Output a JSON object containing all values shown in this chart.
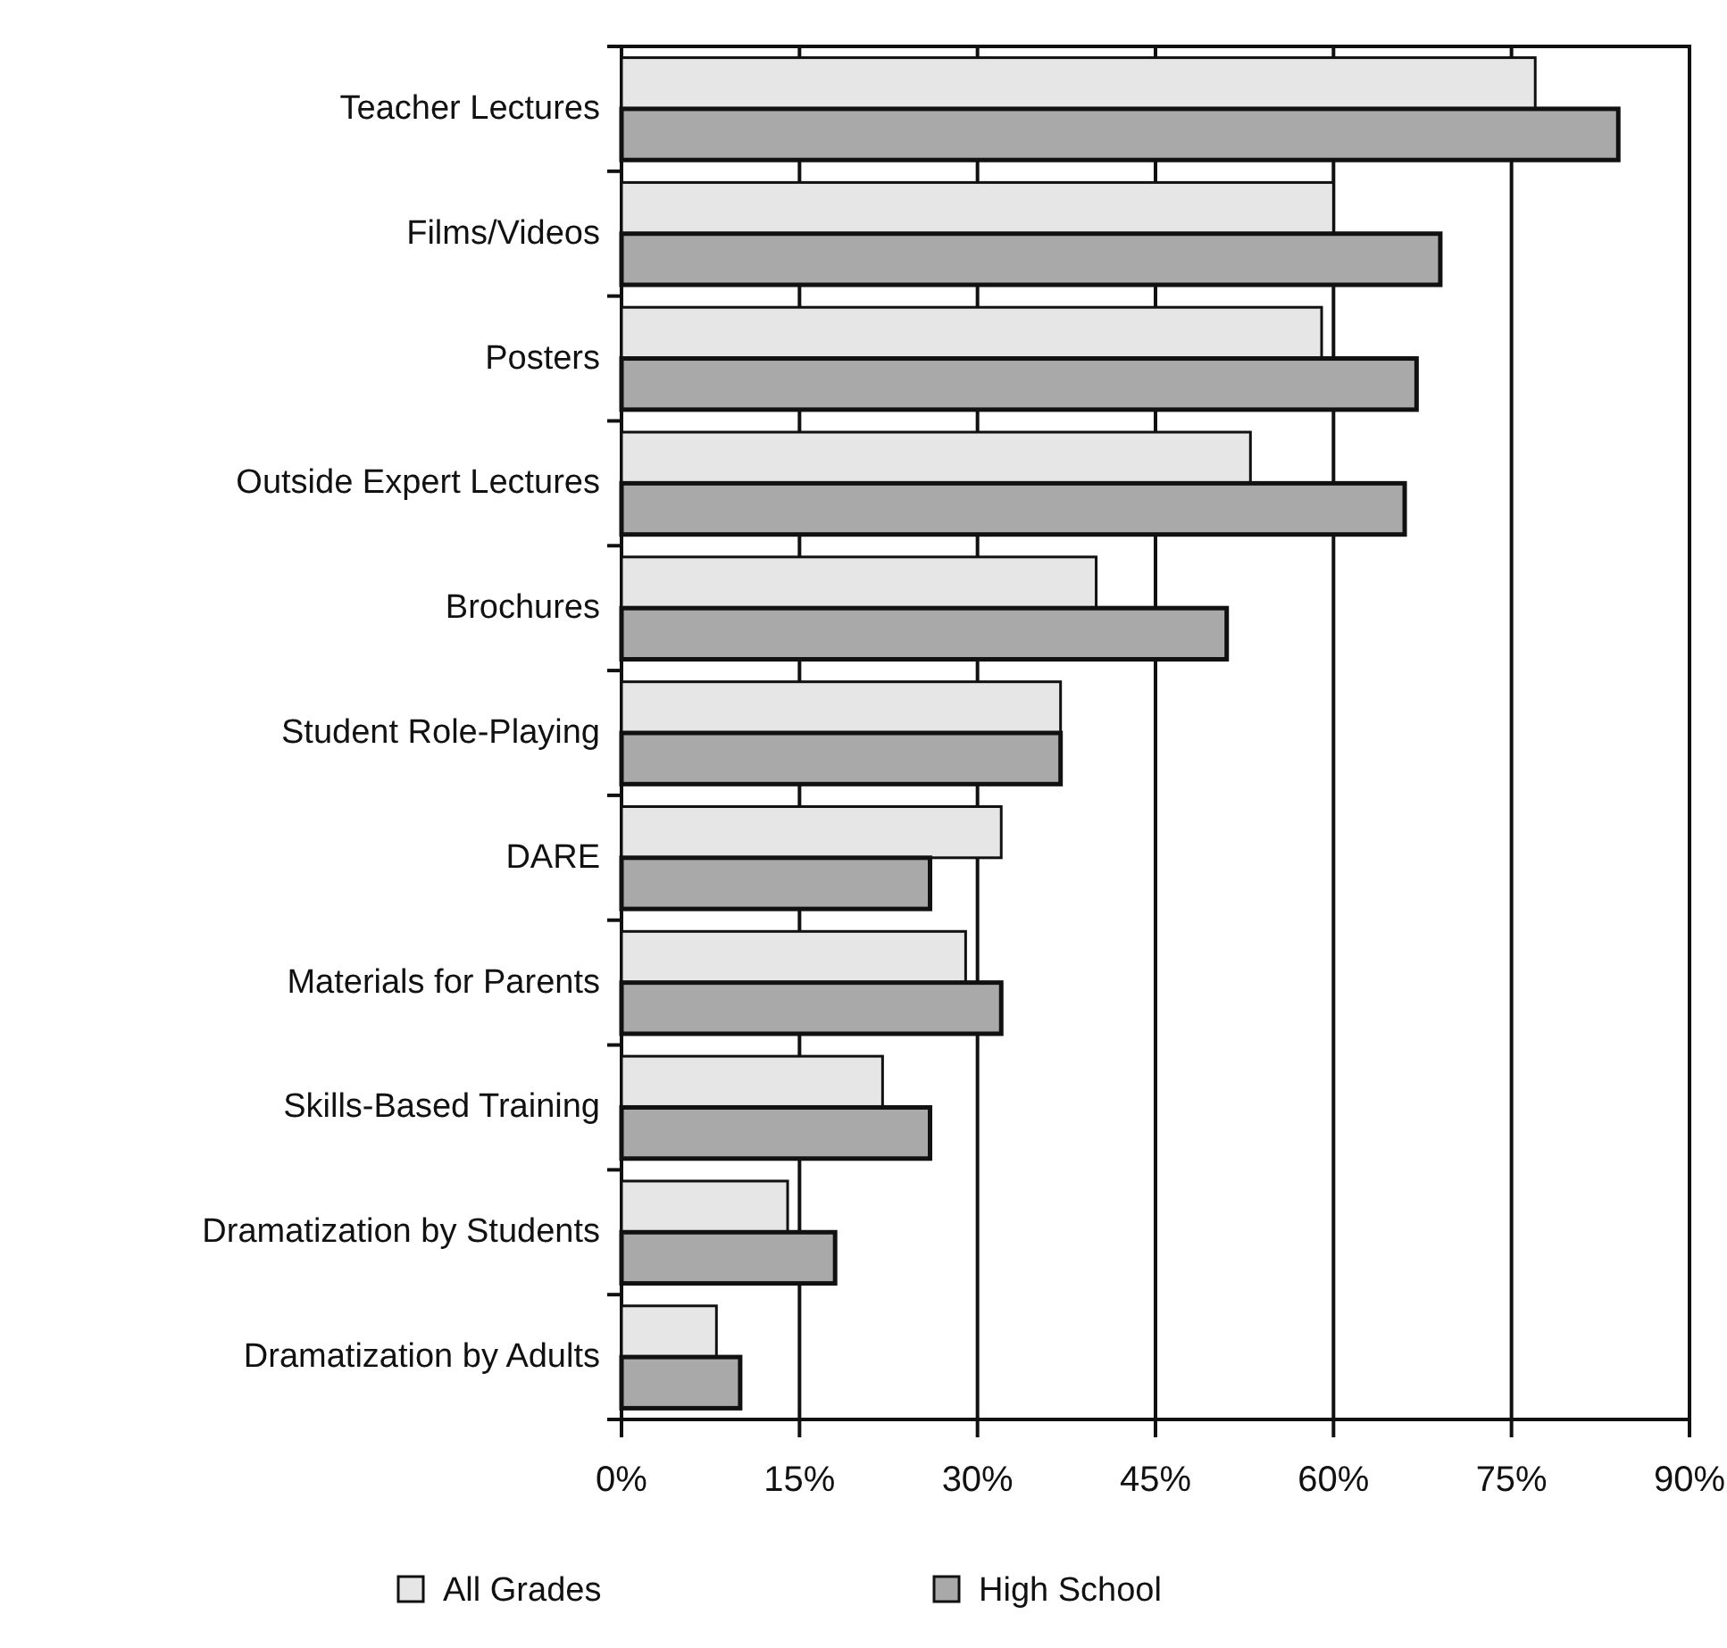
{
  "chart_data": {
    "type": "bar",
    "orientation": "horizontal",
    "categories": [
      "Teacher Lectures",
      "Films/Videos",
      "Posters",
      "Outside Expert Lectures",
      "Brochures",
      "Student Role-Playing",
      "DARE",
      "Materials for Parents",
      "Skills-Based Training",
      "Dramatization by Students",
      "Dramatization by Adults"
    ],
    "series": [
      {
        "name": "All Grades",
        "color": "#e6e6e6",
        "values": [
          77,
          60,
          59,
          53,
          40,
          37,
          32,
          29,
          22,
          14,
          8
        ]
      },
      {
        "name": "High School",
        "color": "#a9a9a9",
        "values": [
          84,
          69,
          67,
          66,
          51,
          37,
          26,
          32,
          26,
          18,
          10
        ]
      }
    ],
    "xlim": [
      0,
      90
    ],
    "xticks": [
      {
        "value": 0,
        "label": "0%"
      },
      {
        "value": 15,
        "label": "15%"
      },
      {
        "value": 30,
        "label": "30%"
      },
      {
        "value": 45,
        "label": "45%"
      },
      {
        "value": 60,
        "label": "60%"
      },
      {
        "value": 75,
        "label": "75%"
      },
      {
        "value": 90,
        "label": "90%"
      }
    ],
    "grid": "x",
    "legend": "bottom"
  }
}
